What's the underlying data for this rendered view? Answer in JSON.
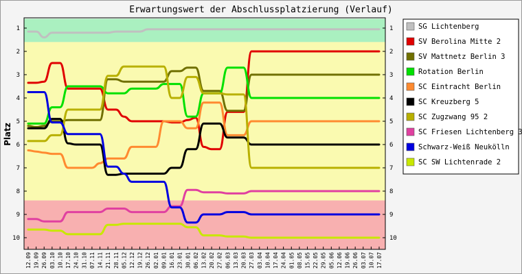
{
  "chart_data": {
    "type": "line",
    "title": "Erwartungswert der Abschlussplatzierung (Verlauf)",
    "ylabel": "Platz",
    "xlabel": "",
    "ylim": [
      1,
      10
    ],
    "y_inverted": true,
    "y_ticks": [
      "1",
      "2",
      "3",
      "4",
      "5",
      "6",
      "7",
      "8",
      "9",
      "10"
    ],
    "legend_position": "right",
    "grid": false,
    "zones": [
      {
        "from": 0.6,
        "to": 1.6,
        "color": "#aaf0c0"
      },
      {
        "from": 1.6,
        "to": 8.4,
        "color": "#fafab0"
      },
      {
        "from": 8.4,
        "to": 10.6,
        "color": "#f8b0b0"
      }
    ],
    "categories": [
      "12.09",
      "19.09",
      "26.09",
      "03.10",
      "10.10",
      "17.10",
      "24.10",
      "31.10",
      "07.11",
      "14.11",
      "21.11",
      "28.11",
      "05.12",
      "12.12",
      "19.12",
      "26.12",
      "02.01",
      "09.01",
      "16.01",
      "23.01",
      "30.01",
      "06.02",
      "13.02",
      "20.02",
      "27.02",
      "06.03",
      "13.03",
      "20.03",
      "27.03",
      "03.04",
      "10.04",
      "17.04",
      "24.04",
      "01.05",
      "08.05",
      "15.05",
      "22.05",
      "29.05",
      "05.06",
      "12.06",
      "19.06",
      "26.06",
      "03.07",
      "10.07",
      "17.07"
    ],
    "series": [
      {
        "name": "SG Lichtenberg",
        "color": "#c0c0c0",
        "values": [
          1.15,
          1.15,
          1.4,
          1.2,
          1.2,
          1.2,
          1.2,
          1.2,
          1.2,
          1.2,
          1.2,
          1.15,
          1.15,
          1.15,
          1.15,
          1.05,
          1.05,
          1.05,
          1.05,
          1.05,
          1.05,
          1.05,
          1.05,
          1.05,
          1.05,
          1.05,
          1.05,
          1.05,
          1.05,
          1.05,
          1.05,
          1.05,
          1.05,
          1.05,
          1.05,
          1.05,
          1.05,
          1.05,
          1.05,
          1.05,
          1.05,
          1.05,
          1.05,
          1.05,
          1.05
        ]
      },
      {
        "name": "SV Berolina Mitte 2",
        "color": "#e00000",
        "values": [
          3.35,
          3.35,
          3.3,
          2.5,
          2.5,
          3.6,
          3.6,
          3.6,
          3.6,
          3.6,
          4.5,
          4.5,
          4.8,
          5.0,
          5.0,
          5.0,
          5.0,
          5.0,
          5.05,
          5.05,
          4.95,
          4.85,
          6.1,
          6.2,
          6.2,
          4.6,
          4.6,
          4.6,
          2.0,
          2.0,
          2.0,
          2.0,
          2.0,
          2.0,
          2.0,
          2.0,
          2.0,
          2.0,
          2.0,
          2.0,
          2.0,
          2.0,
          2.0,
          2.0,
          2.0
        ]
      },
      {
        "name": "SV Mattnetz Berlin 3",
        "color": "#707000",
        "values": [
          5.2,
          5.25,
          5.2,
          5.0,
          5.0,
          4.95,
          4.95,
          4.95,
          4.95,
          4.95,
          3.2,
          3.2,
          3.3,
          3.3,
          3.3,
          3.3,
          3.3,
          3.3,
          2.85,
          2.85,
          2.7,
          2.7,
          3.7,
          3.7,
          3.7,
          4.55,
          4.55,
          4.55,
          3.0,
          3.0,
          3.0,
          3.0,
          3.0,
          3.0,
          3.0,
          3.0,
          3.0,
          3.0,
          3.0,
          3.0,
          3.0,
          3.0,
          3.0,
          3.0,
          3.0
        ]
      },
      {
        "name": "Rotation Berlin",
        "color": "#00e000",
        "values": [
          5.1,
          5.1,
          5.1,
          4.4,
          4.4,
          3.5,
          3.5,
          3.5,
          3.5,
          3.5,
          3.8,
          3.8,
          3.8,
          3.6,
          3.6,
          3.6,
          3.6,
          3.4,
          3.4,
          3.4,
          4.8,
          4.8,
          3.8,
          3.8,
          3.8,
          2.7,
          2.7,
          2.7,
          4.0,
          4.0,
          4.0,
          4.0,
          4.0,
          4.0,
          4.0,
          4.0,
          4.0,
          4.0,
          4.0,
          4.0,
          4.0,
          4.0,
          4.0,
          4.0,
          4.0
        ]
      },
      {
        "name": "SC Eintracht Berlin",
        "color": "#ff8a30",
        "values": [
          6.25,
          6.3,
          6.35,
          6.4,
          6.4,
          7.0,
          7.0,
          7.0,
          7.0,
          6.8,
          6.6,
          6.6,
          6.6,
          6.1,
          6.1,
          6.1,
          6.1,
          5.0,
          5.0,
          5.0,
          5.3,
          5.3,
          4.2,
          4.2,
          4.2,
          5.6,
          5.6,
          5.6,
          5.0,
          5.0,
          5.0,
          5.0,
          5.0,
          5.0,
          5.0,
          5.0,
          5.0,
          5.0,
          5.0,
          5.0,
          5.0,
          5.0,
          5.0,
          5.0,
          5.0
        ]
      },
      {
        "name": "SC Kreuzberg 5",
        "color": "#000000",
        "values": [
          5.3,
          5.3,
          5.3,
          4.9,
          4.9,
          5.95,
          6.0,
          6.0,
          6.0,
          6.0,
          7.3,
          7.3,
          7.25,
          7.25,
          7.25,
          7.25,
          7.25,
          7.25,
          7.0,
          7.0,
          6.2,
          6.2,
          5.1,
          5.1,
          5.1,
          5.7,
          5.7,
          5.7,
          6.0,
          6.0,
          6.0,
          6.0,
          6.0,
          6.0,
          6.0,
          6.0,
          6.0,
          6.0,
          6.0,
          6.0,
          6.0,
          6.0,
          6.0,
          6.0,
          6.0
        ]
      },
      {
        "name": "SC Zugzwang 95 2",
        "color": "#b8b000",
        "values": [
          5.85,
          5.85,
          5.85,
          5.6,
          5.6,
          4.5,
          4.5,
          4.5,
          4.5,
          4.5,
          3.05,
          3.05,
          2.65,
          2.65,
          2.65,
          2.65,
          2.65,
          2.65,
          4.0,
          4.0,
          3.1,
          3.1,
          3.8,
          3.8,
          3.8,
          3.85,
          3.85,
          3.85,
          7.0,
          7.0,
          7.0,
          7.0,
          7.0,
          7.0,
          7.0,
          7.0,
          7.0,
          7.0,
          7.0,
          7.0,
          7.0,
          7.0,
          7.0,
          7.0,
          7.0
        ]
      },
      {
        "name": "SC Friesen Lichtenberg 3",
        "color": "#e040a0",
        "values": [
          9.2,
          9.2,
          9.3,
          9.3,
          9.3,
          8.9,
          8.9,
          8.9,
          8.9,
          8.9,
          8.75,
          8.75,
          8.75,
          8.9,
          8.9,
          8.9,
          8.9,
          8.9,
          8.65,
          8.65,
          7.95,
          7.95,
          8.05,
          8.05,
          8.05,
          8.1,
          8.1,
          8.1,
          8.0,
          8.0,
          8.0,
          8.0,
          8.0,
          8.0,
          8.0,
          8.0,
          8.0,
          8.0,
          8.0,
          8.0,
          8.0,
          8.0,
          8.0,
          8.0,
          8.0
        ]
      },
      {
        "name": "Schwarz-Weiß Neukölln",
        "color": "#0000e0",
        "values": [
          3.75,
          3.75,
          3.75,
          5.05,
          5.05,
          5.55,
          5.55,
          5.55,
          5.55,
          5.55,
          6.95,
          6.95,
          7.25,
          7.6,
          7.6,
          7.6,
          7.6,
          7.6,
          8.7,
          8.7,
          9.35,
          9.35,
          9.0,
          9.0,
          9.0,
          8.9,
          8.9,
          8.9,
          9.0,
          9.0,
          9.0,
          9.0,
          9.0,
          9.0,
          9.0,
          9.0,
          9.0,
          9.0,
          9.0,
          9.0,
          9.0,
          9.0,
          9.0,
          9.0,
          9.0
        ]
      },
      {
        "name": "SC SW Lichtenrade 2",
        "color": "#c8e800",
        "values": [
          9.65,
          9.65,
          9.65,
          9.7,
          9.7,
          9.85,
          9.85,
          9.85,
          9.85,
          9.85,
          9.45,
          9.45,
          9.4,
          9.4,
          9.4,
          9.4,
          9.4,
          9.4,
          9.4,
          9.4,
          9.55,
          9.55,
          9.9,
          9.9,
          9.9,
          9.95,
          9.95,
          9.95,
          10.0,
          10.0,
          10.0,
          10.0,
          10.0,
          10.0,
          10.0,
          10.0,
          10.0,
          10.0,
          10.0,
          10.0,
          10.0,
          10.0,
          10.0,
          10.0,
          10.0
        ]
      }
    ]
  }
}
